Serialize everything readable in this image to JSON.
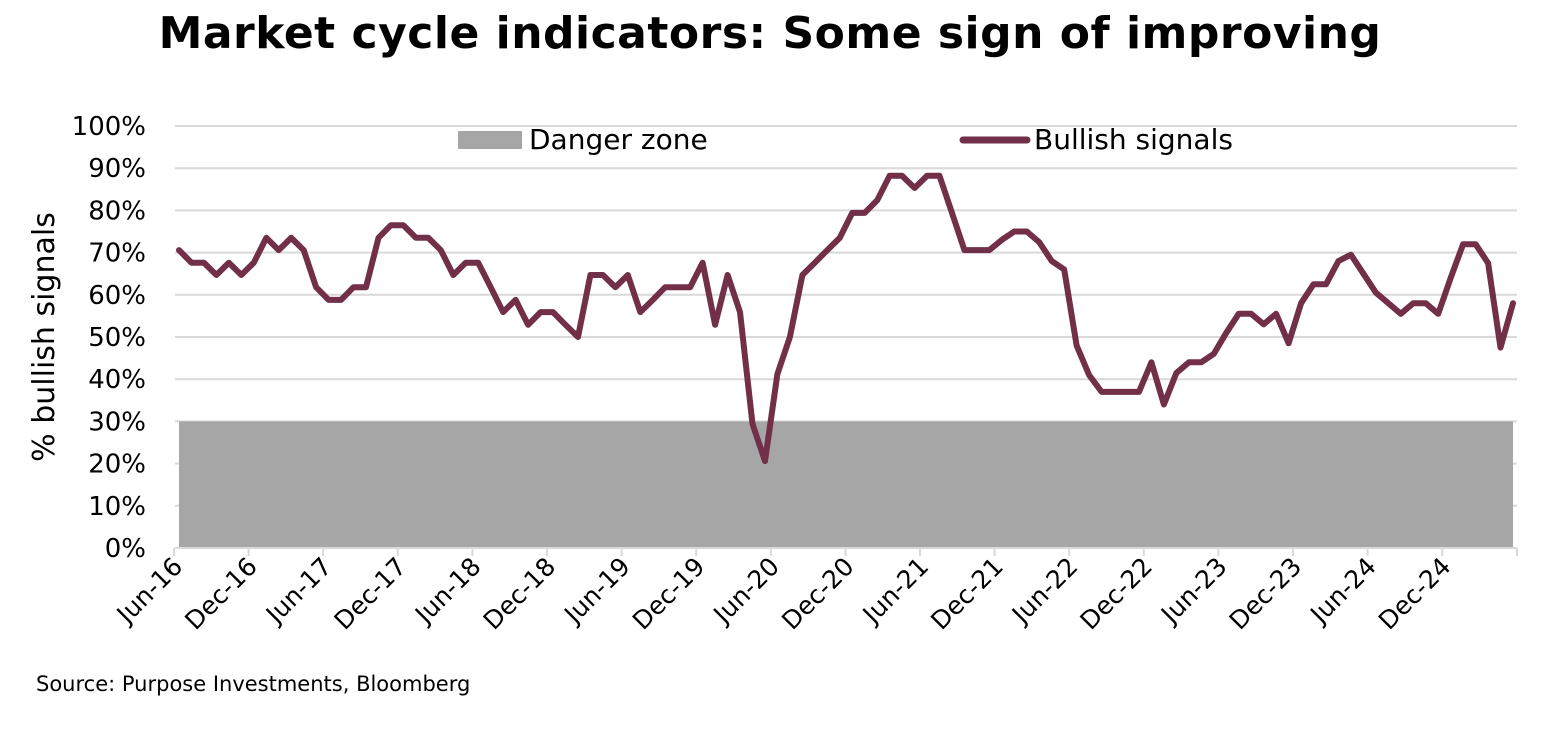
{
  "chart_data": {
    "type": "line",
    "title": "Market cycle indicators: Some sign of improving",
    "ylabel": "% bullish signals",
    "xlabel": "",
    "ylim": [
      0,
      100
    ],
    "y_ticks": [
      "0%",
      "10%",
      "20%",
      "30%",
      "40%",
      "50%",
      "60%",
      "70%",
      "80%",
      "90%",
      "100%"
    ],
    "x_ticks": [
      "Jun-16",
      "Dec-16",
      "Jun-17",
      "Dec-17",
      "Jun-18",
      "Dec-18",
      "Jun-19",
      "Dec-19",
      "Jun-20",
      "Dec-20",
      "Jun-21",
      "Dec-21",
      "Jun-22",
      "Dec-22",
      "Jun-23",
      "Dec-23",
      "Jun-24",
      "Dec-24"
    ],
    "x_start": "Jun-16",
    "x_end": "Mar-25",
    "grid": true,
    "legend_position": "top",
    "danger_zone": {
      "name": "Danger zone",
      "from": 0,
      "to": 30,
      "color": "#a6a6a6"
    },
    "series": [
      {
        "name": "Bullish signals",
        "color": "#722f48",
        "values": [
          70.6,
          67.6,
          67.6,
          64.7,
          67.6,
          64.7,
          67.6,
          73.5,
          70.6,
          73.5,
          70.6,
          61.8,
          58.8,
          58.8,
          61.8,
          61.8,
          73.5,
          76.5,
          76.5,
          73.5,
          73.5,
          70.6,
          64.7,
          67.6,
          67.6,
          61.8,
          55.9,
          58.8,
          52.9,
          55.9,
          55.9,
          52.9,
          50.0,
          64.7,
          64.7,
          61.8,
          64.7,
          55.9,
          58.8,
          61.8,
          61.8,
          61.8,
          67.6,
          52.9,
          64.7,
          55.9,
          29.4,
          20.6,
          41.2,
          50.0,
          64.7,
          67.6,
          70.6,
          73.5,
          79.4,
          79.4,
          82.4,
          88.2,
          88.2,
          85.3,
          88.2,
          88.2,
          79.4,
          70.6,
          70.6,
          70.6,
          73.0,
          75.0,
          75.0,
          72.5,
          68.0,
          66.0,
          48.0,
          41.0,
          37.0,
          37.0,
          37.0,
          37.0,
          44.0,
          34.0,
          41.5,
          44.0,
          44.0,
          46.0,
          51.0,
          55.5,
          55.5,
          53.0,
          55.5,
          48.5,
          58.0,
          62.5,
          62.5,
          68.0,
          69.5,
          65.0,
          60.5,
          58.0,
          55.5,
          58.0,
          58.0,
          55.5,
          64.0,
          72.0,
          72.0,
          67.5,
          47.5,
          58.0
        ]
      }
    ]
  },
  "source": "Source: Purpose Investments, Bloomberg"
}
